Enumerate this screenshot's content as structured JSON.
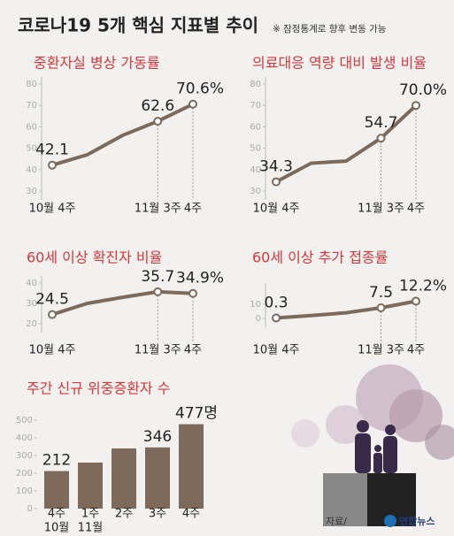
{
  "title": "코로나19 5개 핵심 지표별 추이",
  "note": "※ 잠정통계로 향후 변동 가능",
  "source": "자료/",
  "logo": "연합뉴스",
  "chart_data": [
    {
      "type": "line",
      "title": "중환자실 병상 가동률",
      "categories": [
        "10월 4주",
        null,
        null,
        "11월 3주",
        "4주"
      ],
      "values": [
        42.1,
        47,
        56,
        62.6,
        70.6
      ],
      "value_labels": [
        "42.1",
        null,
        null,
        "62.6",
        "70.6%"
      ],
      "color": "#7d6a5a",
      "ylim": [
        30,
        80
      ],
      "yticks": [
        30,
        40,
        50,
        60,
        70,
        80
      ]
    },
    {
      "type": "line",
      "title": "의료대응 역량 대비 발생 비율",
      "categories": [
        "10월 4주",
        null,
        null,
        "11월 3주",
        "4주"
      ],
      "values": [
        34.3,
        43,
        44,
        54.7,
        70.0
      ],
      "value_labels": [
        "34.3",
        null,
        null,
        "54.7",
        "70.0%"
      ],
      "color": "#7d6a5a",
      "ylim": [
        30,
        80
      ],
      "yticks": [
        30,
        40,
        50,
        60,
        70,
        80
      ]
    },
    {
      "type": "line",
      "title": "60세 이상 확진자 비율",
      "categories": [
        "10월 4주",
        null,
        null,
        "11월 3주",
        "4주"
      ],
      "values": [
        24.5,
        30,
        33,
        35.7,
        34.9
      ],
      "value_labels": [
        "24.5",
        null,
        null,
        "35.7",
        "34.9%"
      ],
      "color": "#7d6a5a",
      "ylim": [
        20,
        40
      ],
      "yticks": [
        20,
        30,
        40
      ]
    },
    {
      "type": "line",
      "title": "60세 이상 추가 접종률",
      "categories": [
        "10월 4주",
        null,
        null,
        "11월 3주",
        "4주"
      ],
      "values": [
        0.3,
        2,
        4,
        7.5,
        12.2
      ],
      "value_labels": [
        "0.3",
        null,
        null,
        "7.5",
        "12.2%"
      ],
      "color": "#7d6a5a",
      "ylim": [
        0,
        20
      ],
      "yticks": [
        0,
        10
      ]
    },
    {
      "type": "bar",
      "title": "주간 신규 위중증환자 수",
      "categories": [
        "4주",
        "1주",
        "2주",
        "3주",
        "4주"
      ],
      "month_labels": [
        "10월",
        "11월",
        null,
        null,
        null
      ],
      "values": [
        212,
        260,
        340,
        346,
        477
      ],
      "value_labels": [
        "212",
        null,
        null,
        "346",
        "477명"
      ],
      "color": "#7d6a5a",
      "ylim": [
        0,
        500
      ],
      "yticks": [
        0,
        100,
        200,
        300,
        400,
        500
      ]
    }
  ]
}
